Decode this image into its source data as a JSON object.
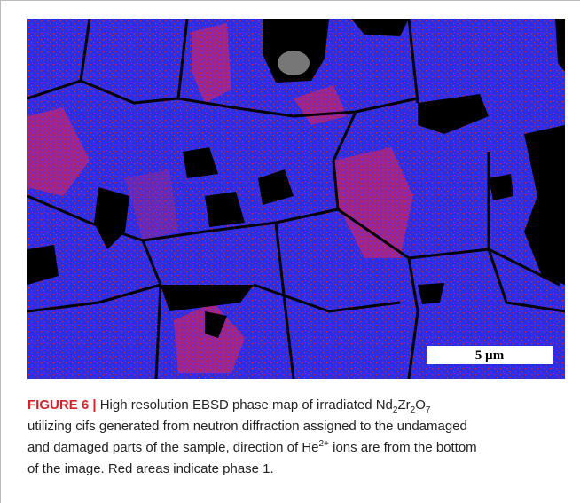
{
  "figure": {
    "scale_bar": "5 µm",
    "caption": {
      "label": "FIGURE 6 |",
      "lines": [
        [
          " High resolution EBSD phase map of irradiated Nd",
          "2",
          "Zr",
          "2",
          "O",
          "7"
        ],
        [
          "utilizing cifs generated from neutron diffraction assigned to the undamaged"
        ],
        [
          "and damaged parts of the sample, direction of He",
          "2+",
          " ions are from the bottom"
        ],
        [
          "of the image. Red areas indicate phase 1."
        ]
      ]
    }
  }
}
